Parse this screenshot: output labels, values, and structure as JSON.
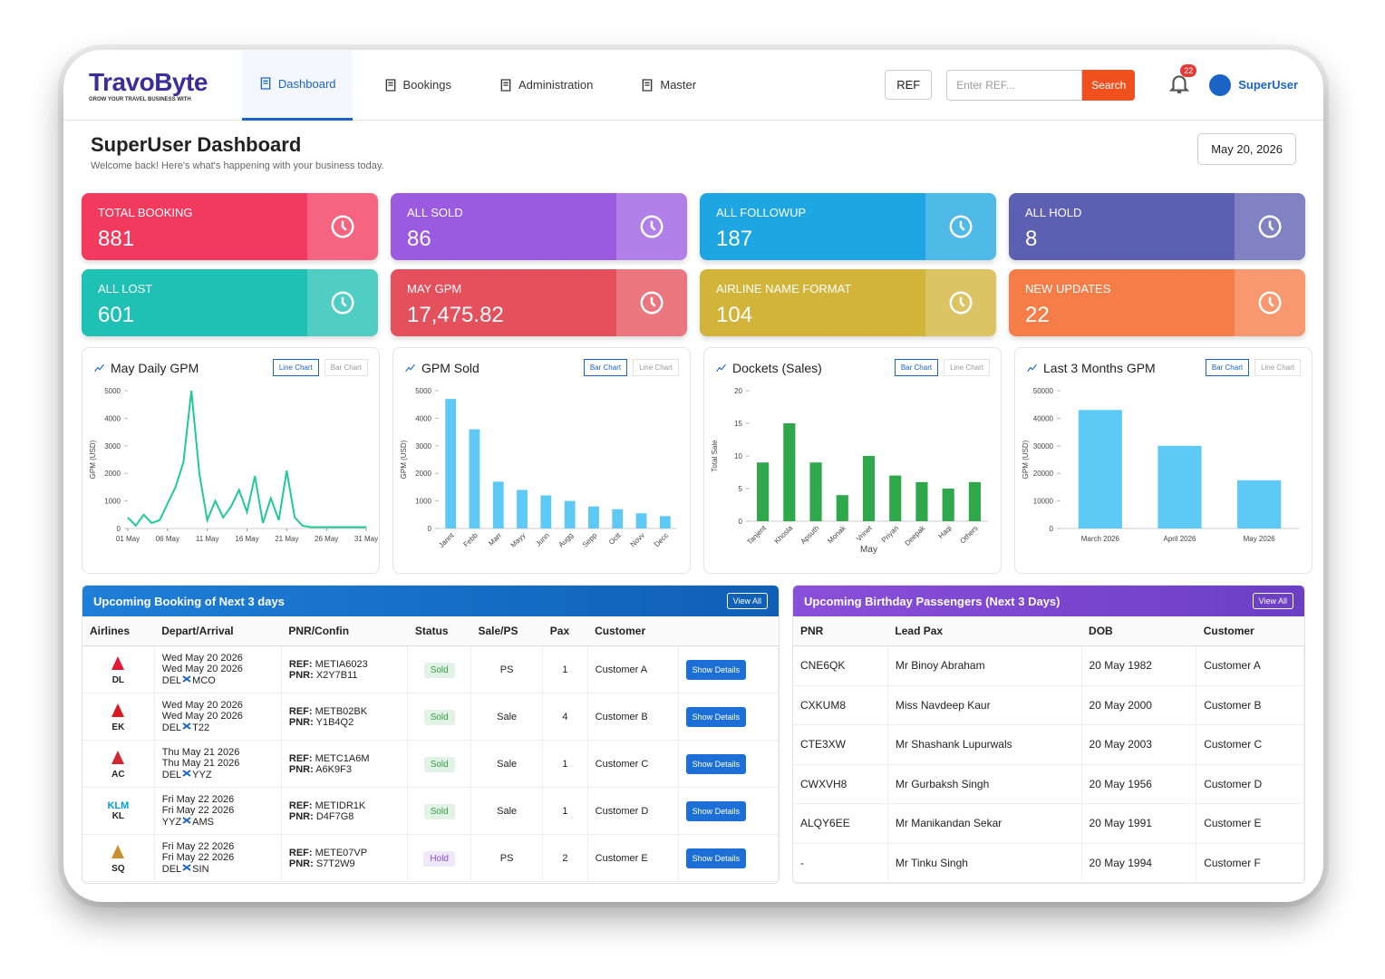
{
  "header": {
    "logo": "TravoByte",
    "tagline": "GROW YOUR TRAVEL BUSINESS WITH",
    "nav": [
      "Dashboard",
      "Bookings",
      "Administration",
      "Master"
    ],
    "active_nav": 0,
    "ref_select": "REF",
    "ref_placeholder": "Enter REF...",
    "search": "Search",
    "notifications": 22,
    "user": "SuperUser"
  },
  "page": {
    "title": "SuperUser Dashboard",
    "subtitle": "Welcome back! Here's what's happening with your business today.",
    "date": "May 20, 2026"
  },
  "cards": [
    {
      "label": "TOTAL BOOKING",
      "value": 881,
      "color": "#f23a5e"
    },
    {
      "label": "ALL SOLD",
      "value": 86,
      "color": "#9a5be0"
    },
    {
      "label": "ALL FOLLOWUP",
      "value": 187,
      "color": "#1ea6e2"
    },
    {
      "label": "ALL HOLD",
      "value": 8,
      "color": "#5d5fb2"
    },
    {
      "label": "ALL LOST",
      "value": 601,
      "color": "#1fc1b4"
    },
    {
      "label": "MAY GPM",
      "value": {
        "value": 17475.82,
        "label": "17,475.82"
      },
      "color": "#e4505c"
    },
    {
      "label": "AIRLINE NAME FORMAT",
      "value": 104,
      "color": "#d2b43a"
    },
    {
      "label": "NEW UPDATES",
      "value": 22,
      "color": "#f67c48"
    }
  ],
  "charts": [
    {
      "type": "line",
      "title": "May Daily GPM",
      "toggle": [
        "Line Chart",
        "Bar Chart"
      ],
      "active": 0,
      "y_label": "GPM (USD)",
      "color": "#20c997",
      "x": [
        1,
        2,
        3,
        4,
        5,
        6,
        7,
        8,
        9,
        10,
        11,
        12,
        13,
        14,
        15,
        16,
        17,
        18,
        19,
        20,
        21,
        22,
        23,
        24,
        25,
        26,
        27,
        28,
        29,
        30,
        31
      ],
      "values": [
        400,
        100,
        500,
        200,
        300,
        900,
        1500,
        2400,
        5000,
        2000,
        300,
        1000,
        400,
        800,
        1400,
        600,
        1900,
        200,
        1100,
        300,
        2100,
        400,
        100,
        50,
        50,
        50,
        50,
        50,
        50,
        50,
        50
      ],
      "xlim": [
        1,
        31
      ],
      "xticks": [
        {
          "value": 1,
          "label": "01 May"
        },
        {
          "value": 6,
          "label": "06 May"
        },
        {
          "value": 11,
          "label": "11 May"
        },
        {
          "value": 16,
          "label": "16 May"
        },
        {
          "value": 21,
          "label": "21 May"
        },
        {
          "value": 26,
          "label": "26 May"
        },
        {
          "value": 31,
          "label": "31 May"
        }
      ],
      "ylim": [
        0,
        5000
      ],
      "yticks": [
        0,
        1000,
        2000,
        3000,
        4000,
        5000
      ]
    },
    {
      "type": "bar",
      "title": "GPM Sold",
      "toggle": [
        "Bar Chart",
        "Line Chart"
      ],
      "active": 0,
      "y_label": "GPM (USD)",
      "color": "#5ec9f5",
      "categories": [
        "Jannt",
        "Febb",
        "Marr",
        "Mayy",
        "Junn",
        "Augg",
        "Sepp",
        "Octt",
        "Novv",
        "Decc"
      ],
      "values": [
        4700,
        3600,
        1700,
        1400,
        1200,
        1000,
        800,
        700,
        550,
        450
      ],
      "ylim": [
        0,
        5000
      ],
      "yticks": [
        0,
        1000,
        2000,
        3000,
        4000,
        5000
      ]
    },
    {
      "type": "bar",
      "title": "Dockets (Sales)",
      "toggle": [
        "Bar Chart",
        "Line Chart"
      ],
      "active": 0,
      "y_label": "Total Sale",
      "x_label": "May",
      "color": "#2ea84a",
      "categories": [
        "Tanjent",
        "Khosla",
        "Apsuth",
        "Monak",
        "Vrinet",
        "Priyan",
        "Deepak",
        "Haqi",
        "Others"
      ],
      "values": [
        9,
        15,
        9,
        4,
        10,
        7,
        6,
        5,
        6
      ],
      "ylim": [
        0,
        20
      ],
      "yticks": [
        0,
        5,
        10,
        15,
        20
      ]
    },
    {
      "type": "bar",
      "title": "Last 3 Months GPM",
      "toggle": [
        "Bar Chart",
        "Line Chart"
      ],
      "active": 0,
      "y_label": "GPM (USD)",
      "color": "#5ec9f5",
      "categories": [
        "March 2026",
        "April 2026",
        "May 2026"
      ],
      "values": [
        43000,
        30000,
        17500
      ],
      "ylim": [
        0,
        50000
      ],
      "yticks": [
        0,
        10000,
        20000,
        30000,
        40000,
        50000
      ]
    }
  ],
  "bookings": {
    "title": "Upcoming Booking of Next 3 days",
    "view_all": "View All",
    "columns": [
      "Airlines",
      "Depart/Arrival",
      "PNR/Confin",
      "Status",
      "Sale/PS",
      "Pax",
      "Customer"
    ],
    "ref_label": "REF:",
    "pnr_label": "PNR:",
    "action": "Show Details",
    "rows": [
      {
        "airline": "DL",
        "depart": "Wed May 20 2026",
        "arrive": "Wed May 20 2026",
        "from": "DEL",
        "to": "MCO",
        "ref": "METIA6023",
        "pnr": "X2Y7B11",
        "status": "Sold",
        "status_color": "#2f9e44",
        "sale": "PS",
        "pax": 1,
        "customer": "Customer A"
      },
      {
        "airline": "EK",
        "depart": "Wed May 20 2026",
        "arrive": "Wed May 20 2026",
        "from": "DEL",
        "to": "T22",
        "ref": "METB02BK",
        "pnr": "Y1B4Q2",
        "status": "Sold",
        "status_color": "#2f9e44",
        "sale": "Sale",
        "pax": 4,
        "customer": "Customer B"
      },
      {
        "airline": "AC",
        "depart": "Thu May 21 2026",
        "arrive": "Thu May 21 2026",
        "from": "DEL",
        "to": "YYZ",
        "ref": "METC1A6M",
        "pnr": "A6K9F3",
        "status": "Sold",
        "status_color": "#2f9e44",
        "sale": "Sale",
        "pax": 1,
        "customer": "Customer C"
      },
      {
        "airline": "KL",
        "logo": "KLM",
        "depart": "Fri May 22 2026",
        "arrive": "Fri May 22 2026",
        "from": "YYZ",
        "to": "AMS",
        "ref": "METIDR1K",
        "pnr": "D4F7G8",
        "status": "Sold",
        "status_color": "#2f9e44",
        "sale": "Sale",
        "pax": 1,
        "customer": "Customer D"
      },
      {
        "airline": "SQ",
        "depart": "Fri May 22 2026",
        "arrive": "Fri May 22 2026",
        "from": "DEL",
        "to": "SIN",
        "ref": "METE07VP",
        "pnr": "S7T2W9",
        "status": "Hold",
        "status_color": "#8a4fd8",
        "sale": "PS",
        "pax": 2,
        "customer": "Customer E"
      }
    ]
  },
  "birthdays": {
    "title": "Upcoming Birthday Passengers (Next 3 Days)",
    "view_all": "View All",
    "columns": [
      "PNR",
      "Lead Pax",
      "DOB",
      "Customer"
    ],
    "rows": [
      [
        "CNE6QK",
        "Mr Binoy Abraham",
        "20 May 1982",
        "Customer A"
      ],
      [
        "CXKUM8",
        "Miss Navdeep Kaur",
        "20 May 2000",
        "Customer B"
      ],
      [
        "CTE3XW",
        "Mr Shashank Lupurwals",
        "20 May 2003",
        "Customer C"
      ],
      [
        "CWXVH8",
        "Mr Gurbaksh Singh",
        "20 May 1956",
        "Customer D"
      ],
      [
        "ALQY6EE",
        "Mr Manikandan Sekar",
        "20 May 1991",
        "Customer E"
      ],
      [
        "-",
        "Mr Tinku Singh",
        "20 May 1994",
        "Customer F"
      ]
    ]
  }
}
